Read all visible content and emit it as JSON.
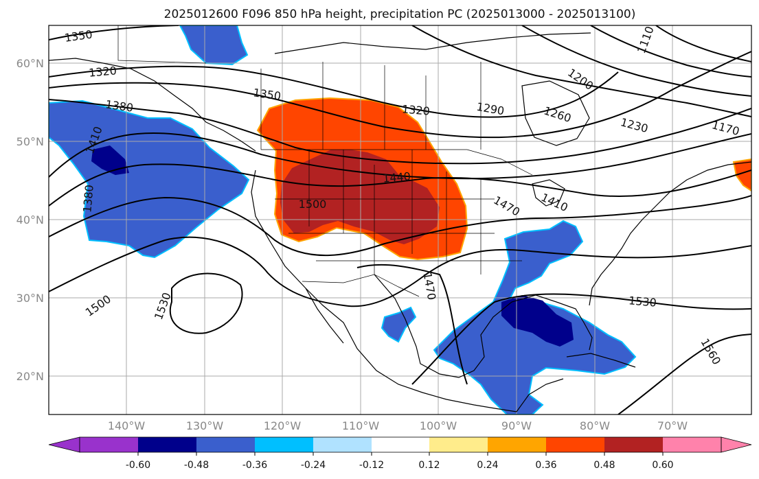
{
  "title": "2025012600 F096 850 hPa height, precipitation PC (2025013000 - 2025013100)",
  "latitude_labels": [
    "60°N",
    "50°N",
    "40°N",
    "30°N",
    "20°N"
  ],
  "longitude_labels": [
    "140°W",
    "130°W",
    "120°W",
    "110°W",
    "100°W",
    "90°W",
    "80°W",
    "70°W"
  ],
  "contour_labels": [
    "1350",
    "1320",
    "1380",
    "1410",
    "1380",
    "1350",
    "1320",
    "1290",
    "1260",
    "1230",
    "1200",
    "1170",
    "1440",
    "1500",
    "1470",
    "1410",
    "1470",
    "1500",
    "1530",
    "1530",
    "1560",
    "1110"
  ],
  "colorbar": {
    "ticks": [
      "-0.60",
      "-0.48",
      "-0.36",
      "-0.24",
      "-0.12",
      "0.12",
      "0.24",
      "0.36",
      "0.48",
      "0.60"
    ],
    "colors": [
      "#9932cc",
      "#00008b",
      "#3a5fcd",
      "#00bfff",
      "#b0e2ff",
      "#ffffff",
      "#ffec8b",
      "#ffa500",
      "#ff4500",
      "#b22222",
      "#ff82ab"
    ]
  },
  "colors": {
    "strong_negative": "#00008b",
    "negative": "#3a5fcd",
    "weak_negative": "#00bfff",
    "weak_positive": "#ffa500",
    "positive": "#ff4500",
    "strong_positive": "#b22222"
  }
}
